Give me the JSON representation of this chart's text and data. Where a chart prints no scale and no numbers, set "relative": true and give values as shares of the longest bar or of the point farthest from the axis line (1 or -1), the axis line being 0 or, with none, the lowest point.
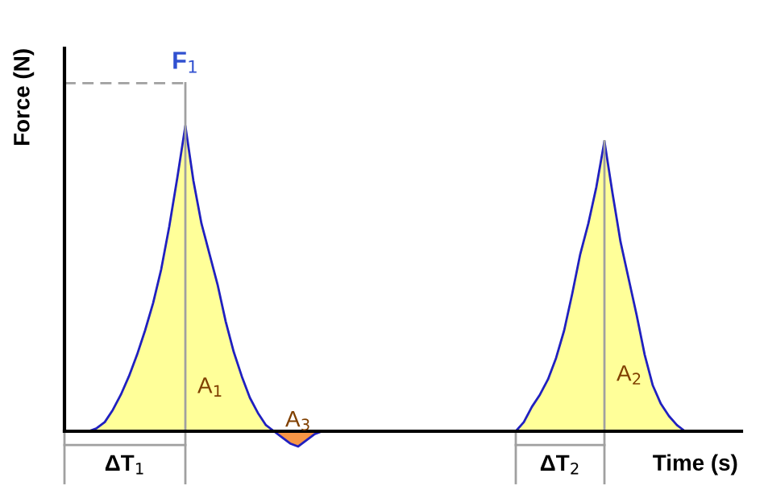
{
  "chart_data": {
    "type": "area",
    "relative": true,
    "xlabel": "Time (s)",
    "ylabel": "Force (N)",
    "categories": [
      null,
      null,
      null,
      null,
      null,
      null,
      null,
      null,
      null,
      null,
      null,
      null,
      null,
      null,
      null,
      null,
      null,
      null,
      null,
      null,
      null,
      null,
      null,
      null,
      null,
      null,
      null,
      null,
      null,
      null,
      null,
      null,
      null,
      null,
      null,
      null,
      null,
      null,
      null,
      null,
      null,
      null,
      null,
      null,
      null,
      null,
      null,
      null,
      null,
      null,
      null,
      null,
      null,
      null,
      null,
      null,
      null,
      null,
      null,
      null,
      null,
      null,
      null,
      null,
      null,
      null,
      null,
      null,
      null,
      null,
      null,
      null,
      null,
      null,
      null,
      null,
      null,
      null,
      null,
      null,
      null,
      null,
      null,
      null,
      null
    ],
    "series": [
      {
        "color": "#ffff99",
        "values": [
          0,
          0,
          0,
          0,
          0.01,
          0.03,
          0.07,
          0.12,
          0.18,
          0.25,
          0.33,
          0.42,
          0.53,
          0.67,
          0.83,
          1,
          0.82,
          0.68,
          0.58,
          0.48,
          0.36,
          0.26,
          0.18,
          0.11,
          0.06,
          0.02,
          0,
          0,
          0,
          0,
          0,
          0,
          0,
          0,
          0,
          0,
          0,
          0,
          0,
          0,
          0,
          0,
          0,
          0,
          0,
          0,
          0,
          0,
          0,
          0,
          0,
          0,
          0,
          0,
          0,
          0,
          0,
          0.03,
          0.08,
          0.12,
          0.17,
          0.24,
          0.33,
          0.45,
          0.58,
          0.68,
          0.8,
          0.95,
          0.78,
          0.62,
          0.5,
          0.38,
          0.25,
          0.15,
          0.09,
          0.05,
          0.02,
          0,
          0,
          0,
          0,
          0,
          0,
          0,
          0
        ]
      },
      {
        "color": "#f79646",
        "values": [
          null,
          null,
          null,
          null,
          null,
          null,
          null,
          null,
          null,
          null,
          null,
          null,
          null,
          null,
          null,
          null,
          null,
          null,
          null,
          null,
          null,
          null,
          null,
          null,
          null,
          null,
          0,
          -0.02,
          -0.04,
          -0.05,
          -0.03,
          -0.01,
          0,
          null,
          null,
          null,
          null,
          null,
          null,
          null,
          null,
          null,
          null,
          null,
          null,
          null,
          null,
          null,
          null,
          null,
          null,
          null,
          null,
          null,
          null,
          null,
          null,
          null,
          null,
          null,
          null,
          null,
          null,
          null,
          null,
          null,
          null,
          null,
          null,
          null,
          null,
          null,
          null,
          null,
          null,
          null,
          null,
          null,
          null,
          null,
          null,
          null,
          null,
          null,
          null
        ]
      }
    ],
    "ref_lines": [
      {
        "axis": "y",
        "value": 1.14,
        "label": "F$_{1}$",
        "color": "#a0a0a0",
        "line_style": "dashed"
      }
    ],
    "annotations": [
      "A$_{1}$",
      "A$_{2}$",
      "A$_{3}$",
      "ΔT$_{1}$",
      "ΔT$_{2}$"
    ],
    "grid": false,
    "legend": false
  }
}
